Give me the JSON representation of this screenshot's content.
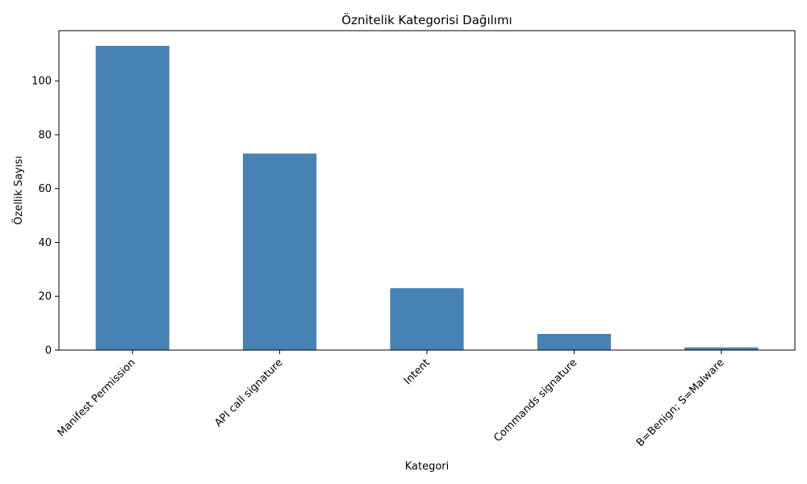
{
  "chart_data": {
    "type": "bar",
    "title": "Öznitelik Kategorisi Dağılımı",
    "xlabel": "Kategori",
    "ylabel": "Özellik Sayısı",
    "categories": [
      "Manifest Permission",
      "API call signature",
      "Intent",
      "Commands signature",
      "B=Benign; S=Malware"
    ],
    "values": [
      113,
      73,
      23,
      6,
      1
    ],
    "ylim": [
      0,
      118.65
    ],
    "yticks": [
      0,
      20,
      40,
      60,
      80,
      100
    ],
    "grid": false,
    "legend": "none",
    "bar_color": "#4682b4"
  }
}
